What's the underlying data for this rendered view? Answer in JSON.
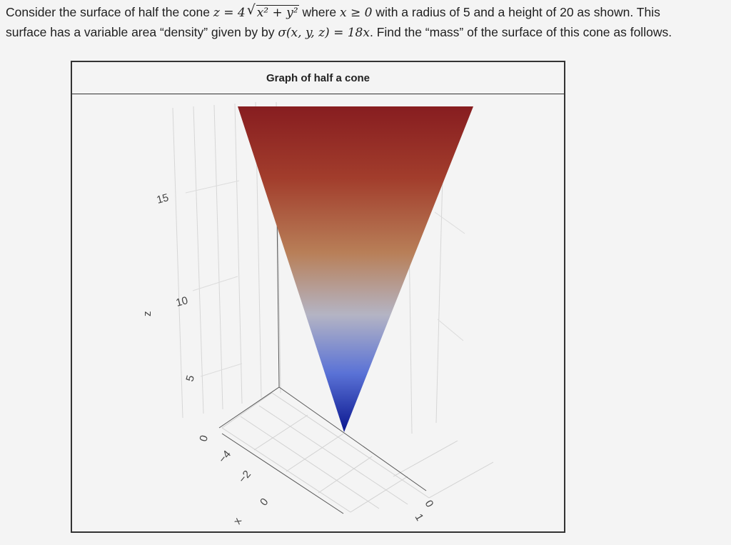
{
  "problem": {
    "line1_a": "Consider the surface of half the cone ",
    "line1_b": " where ",
    "line1_c": " with a radius of 5 and a height of 20 as shown. This",
    "line2_a": "surface has a variable area “density” given by by ",
    "line2_b": ". Find the “mass” of the surface of this cone as follows.",
    "math_z_eq": "z = 4",
    "math_sqrt_arg": "x² + y²",
    "math_cond": "x ≥ 0",
    "math_sigma": "σ(x, y, z) = 18x"
  },
  "chart_data": {
    "type": "surface3d",
    "title": "Graph of half a cone",
    "surface": "z = 4*sqrt(x^2 + y^2), x >= 0",
    "radius": 5,
    "height": 20,
    "z_axis": {
      "label": "z",
      "ticks": [
        "0",
        "5",
        "10",
        "15"
      ]
    },
    "x_axis": {
      "label": "x",
      "ticks": [
        "−4",
        "−2",
        "0"
      ]
    },
    "y_axis": {
      "ticks": [
        "0",
        "1"
      ]
    },
    "colorscale": [
      "#0a168f",
      "#5a72d6",
      "#b4b4c4",
      "#b87f58",
      "#a23d2c",
      "#871d20"
    ],
    "grid": true
  }
}
